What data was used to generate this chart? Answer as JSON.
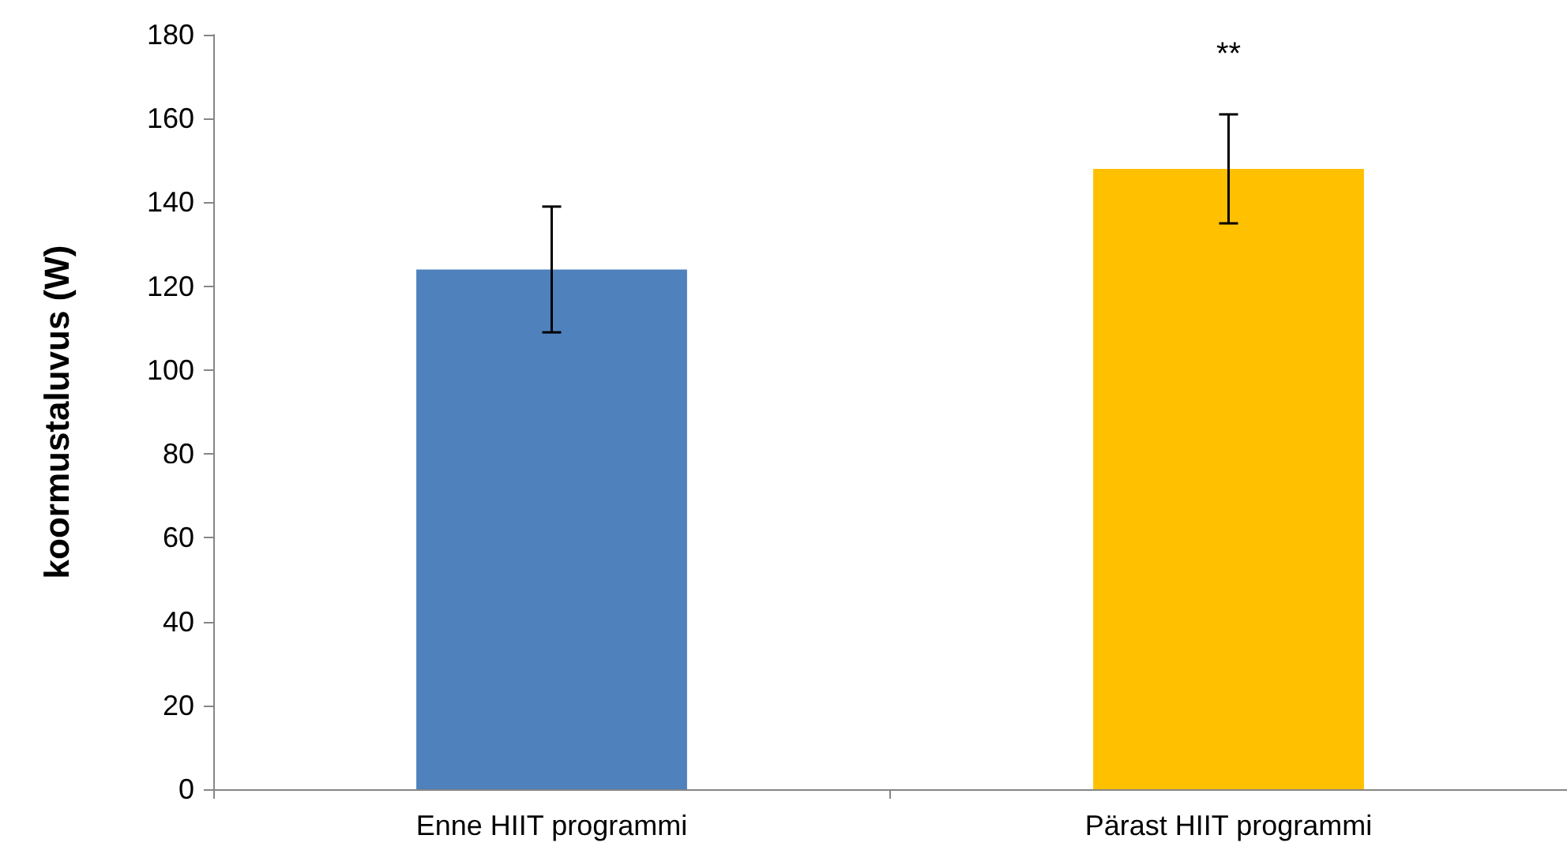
{
  "chart_data": {
    "type": "bar",
    "ylabel": "koormustaluvus (W)",
    "categories": [
      "Enne HIIT programmi",
      "Pärast HIIT programmi"
    ],
    "values": [
      124,
      148
    ],
    "colors": [
      "#4f81bd",
      "#ffc000"
    ],
    "errors": [
      15,
      13
    ],
    "ylim": [
      0,
      180
    ],
    "yticks": [
      0,
      20,
      40,
      60,
      80,
      100,
      120,
      140,
      160,
      180
    ],
    "grid": false,
    "annotations": [
      "**"
    ]
  }
}
